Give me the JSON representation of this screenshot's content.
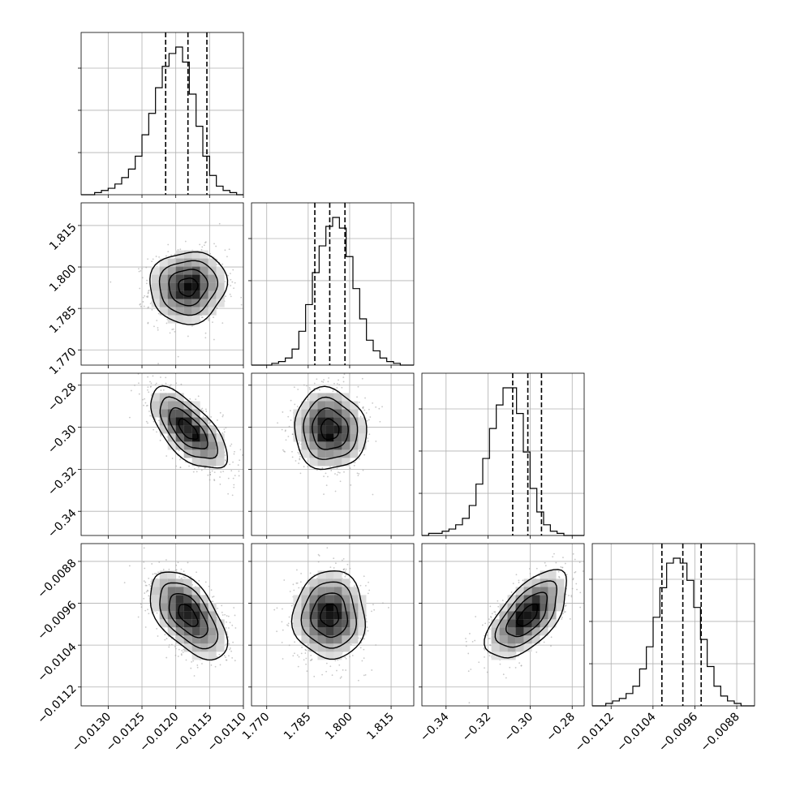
{
  "chart_data": {
    "type": "corner",
    "title": "",
    "parameters": [
      {
        "xlim": [
          -0.0134,
          -0.011
        ],
        "ticks": [
          "-0.0130",
          "-0.0125",
          "-0.0120",
          "-0.0115",
          "-0.0110"
        ],
        "tick_values": [
          -0.013,
          -0.0125,
          -0.012,
          -0.0115,
          -0.011
        ],
        "quantiles": [
          -0.01215,
          -0.01182,
          -0.01154
        ]
      },
      {
        "xlim": [
          1.7645,
          1.8232
        ],
        "ticks": [
          "1.770",
          "1.785",
          "1.800",
          "1.815"
        ],
        "tick_values": [
          1.77,
          1.785,
          1.8,
          1.815
        ],
        "quantiles": [
          1.7874,
          1.7928,
          1.7983
        ]
      },
      {
        "xlim": [
          -0.3515,
          -0.2743
        ],
        "ticks": [
          "-0.34",
          "-0.32",
          "-0.30",
          "-0.28"
        ],
        "tick_values": [
          -0.34,
          -0.32,
          -0.3,
          -0.28
        ],
        "quantiles": [
          -0.3083,
          -0.3011,
          -0.2946
        ]
      },
      {
        "xlim": [
          -0.01156,
          -0.00846
        ],
        "ticks": [
          "-0.0112",
          "-0.0104",
          "-0.0096",
          "-0.0088"
        ],
        "tick_values": [
          -0.0112,
          -0.0104,
          -0.0096,
          -0.0088
        ],
        "quantiles": [
          -0.01023,
          -0.00983,
          -0.00948
        ]
      }
    ],
    "histograms_1d": [
      [
        0,
        0,
        1,
        2,
        3,
        5,
        8,
        12,
        18,
        28,
        38,
        50,
        60,
        66,
        69,
        62,
        47,
        32,
        18,
        9,
        4,
        2,
        1,
        0
      ],
      [
        0,
        0,
        0,
        1,
        2,
        4,
        9,
        19,
        34,
        52,
        67,
        78,
        83,
        77,
        61,
        43,
        26,
        14,
        8,
        4,
        2,
        1,
        0,
        0
      ],
      [
        0,
        1,
        1,
        2,
        3,
        5,
        8,
        14,
        24,
        36,
        50,
        61,
        69,
        69,
        57,
        39,
        22,
        11,
        5,
        2,
        1,
        0,
        0,
        0
      ],
      [
        0,
        0,
        1,
        2,
        3,
        5,
        8,
        15,
        24,
        36,
        48,
        58,
        60,
        58,
        51,
        40,
        27,
        16,
        8,
        4,
        2,
        1,
        0,
        0
      ]
    ],
    "hist_peak_ticks": {
      "yticks_fraction": [
        0.333,
        0.667,
        1.0
      ]
    },
    "pair_panels": [
      {
        "row": 1,
        "col": 0,
        "mean": [
          -0.01182,
          1.7928
        ],
        "sd": [
          0.00027,
          0.0062
        ],
        "rho": 0.05
      },
      {
        "row": 2,
        "col": 0,
        "mean": [
          -0.01182,
          -0.3011
        ],
        "sd": [
          0.00027,
          0.0092
        ],
        "rho": -0.65
      },
      {
        "row": 2,
        "col": 1,
        "mean": [
          1.7928,
          -0.3011
        ],
        "sd": [
          0.0062,
          0.0092
        ],
        "rho": -0.05
      },
      {
        "row": 3,
        "col": 0,
        "mean": [
          -0.01182,
          -0.00983
        ],
        "sd": [
          0.00027,
          0.0004
        ],
        "rho": -0.55
      },
      {
        "row": 3,
        "col": 1,
        "mean": [
          1.7928,
          -0.00983
        ],
        "sd": [
          0.0062,
          0.0004
        ],
        "rho": 0.0
      },
      {
        "row": 3,
        "col": 2,
        "mean": [
          -0.3011,
          -0.00983
        ],
        "sd": [
          0.0092,
          0.0004
        ],
        "rho": 0.62
      }
    ],
    "contour_levels_sigma": [
      0.5,
      1.0,
      1.5,
      2.0
    ],
    "grid": true,
    "colors": {
      "line": "#000000",
      "grid": "#b0b0b0",
      "points": "#9a9a9a"
    }
  }
}
